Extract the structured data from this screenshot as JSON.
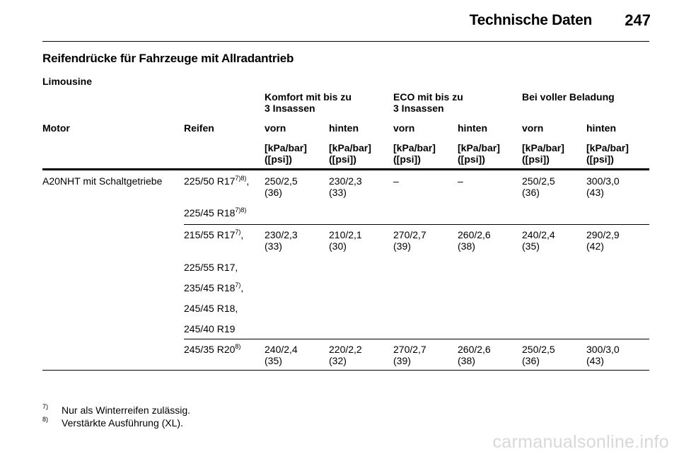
{
  "header": {
    "title": "Technische Daten",
    "page_number": "247"
  },
  "section_title": "Reifendrücke für Fahrzeuge mit Allradantrieb",
  "subsection": "Limousine",
  "groups": {
    "komfort_line1": "Komfort mit bis zu",
    "komfort_line2": "3 Insassen",
    "eco_line1": "ECO mit bis zu",
    "eco_line2": "3 Insassen",
    "voll": "Bei voller Beladung"
  },
  "columns": {
    "motor": "Motor",
    "reifen": "Reifen",
    "vorn": "vorn",
    "hinten": "hinten"
  },
  "units": {
    "line1": "[kPa/bar]",
    "line2": "([psi])"
  },
  "motor": "A20NHT mit Schaltgetriebe",
  "tires": {
    "t1": "225/50 R17",
    "t1_sup": "7)8)",
    "t1_suffix": ",",
    "t2": "225/45 R18",
    "t2_sup": "7)8)",
    "t3": "215/55 R17",
    "t3_sup": "7)",
    "t3_suffix": ",",
    "t4": "225/55 R17,",
    "t5": "235/45 R18",
    "t5_sup": "7)",
    "t5_suffix": ",",
    "t6": "245/45 R18,",
    "t7": "245/40 R19",
    "t8": "245/35 R20",
    "t8_sup": "8)"
  },
  "rows": [
    {
      "values": [
        "250/2,5",
        "230/2,3",
        "–",
        "–",
        "250/2,5",
        "300/3,0"
      ],
      "psi": [
        "(36)",
        "(33)",
        "",
        "",
        "(36)",
        "(43)"
      ]
    },
    {
      "values": [
        "230/2,3",
        "210/2,1",
        "270/2,7",
        "260/2,6",
        "240/2,4",
        "290/2,9"
      ],
      "psi": [
        "(33)",
        "(30)",
        "(39)",
        "(38)",
        "(35)",
        "(42)"
      ]
    },
    {
      "values": [
        "240/2,4",
        "220/2,2",
        "270/2,7",
        "260/2,6",
        "250/2,5",
        "300/3,0"
      ],
      "psi": [
        "(35)",
        "(32)",
        "(39)",
        "(38)",
        "(36)",
        "(43)"
      ]
    }
  ],
  "footnotes": [
    {
      "mark": "7)",
      "text": "Nur als Winterreifen zulässig."
    },
    {
      "mark": "8)",
      "text": "Verstärkte Ausführung (XL)."
    }
  ],
  "watermark": "carmanualsonline.info"
}
